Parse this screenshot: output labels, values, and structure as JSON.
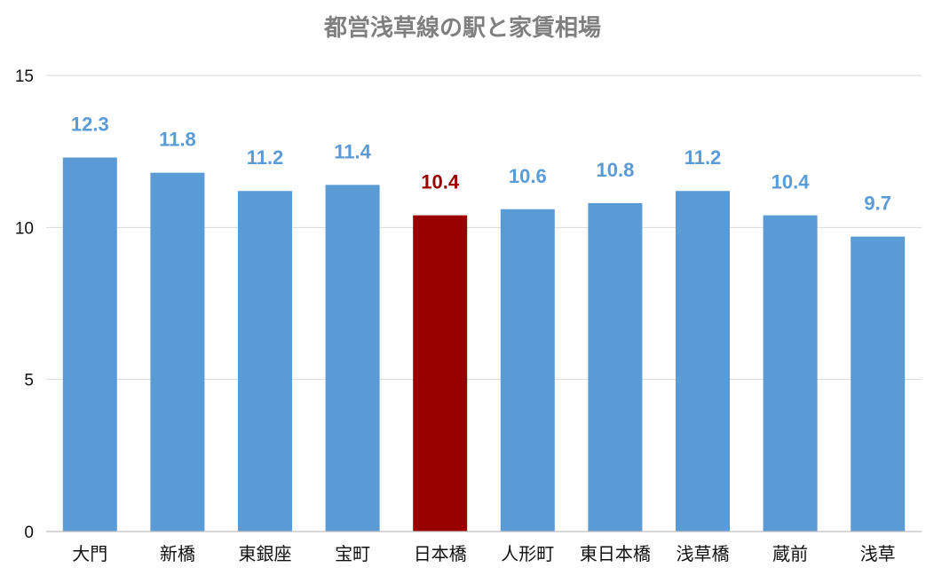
{
  "chart_data": {
    "type": "bar",
    "title": "都営浅草線の駅と家賃相場",
    "xlabel": "",
    "ylabel": "",
    "ylim": [
      0,
      15
    ],
    "yticks": [
      0,
      5,
      10,
      15
    ],
    "grid": true,
    "legend": "none",
    "categories": [
      "大門",
      "新橋",
      "東銀座",
      "宝町",
      "日本橋",
      "人形町",
      "東日本橋",
      "浅草橋",
      "蔵前",
      "浅草"
    ],
    "values": [
      12.3,
      11.8,
      11.2,
      11.4,
      10.4,
      10.6,
      10.8,
      11.2,
      10.4,
      9.7
    ],
    "data_labels": [
      "12.3",
      "11.8",
      "11.2",
      "11.4",
      "10.4",
      "10.6",
      "10.8",
      "11.2",
      "10.4",
      "9.7"
    ],
    "highlight_index": 4,
    "colors": {
      "bar": "#5b9bd5",
      "highlight_bar": "#990000",
      "label": "#5b9bd5",
      "highlight_label": "#990000"
    }
  }
}
